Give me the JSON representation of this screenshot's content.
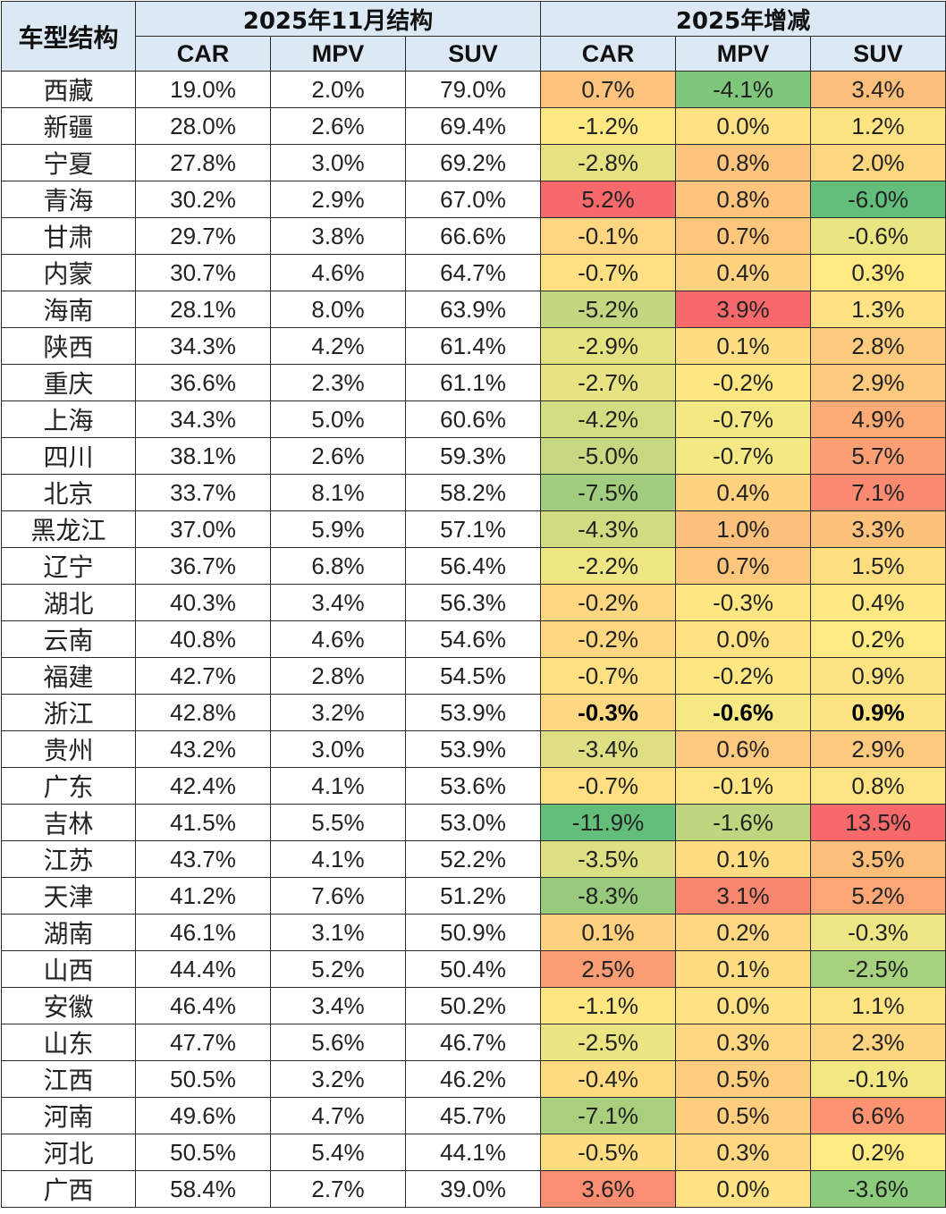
{
  "chart_data": {
    "type": "table",
    "corner_label": "车型结构",
    "groups": [
      "2025年11月结构",
      "2025年增减"
    ],
    "columns": [
      "CAR",
      "MPV",
      "SUV"
    ],
    "rows": [
      {
        "province": "西藏",
        "structure": [
          "19.0%",
          "2.0%",
          "79.0%"
        ],
        "change": [
          "0.7%",
          "-4.1%",
          "3.4%"
        ],
        "change_colors": [
          "#fdc37d",
          "#7dc67a",
          "#fcbf7b"
        ]
      },
      {
        "province": "新疆",
        "structure": [
          "28.0%",
          "2.6%",
          "69.4%"
        ],
        "change": [
          "-1.2%",
          "0.0%",
          "1.2%"
        ],
        "change_colors": [
          "#fde883",
          "#fee183",
          "#fee383"
        ]
      },
      {
        "province": "宁夏",
        "structure": [
          "27.8%",
          "3.0%",
          "69.2%"
        ],
        "change": [
          "-2.8%",
          "0.8%",
          "2.0%"
        ],
        "change_colors": [
          "#e6e282",
          "#fdc47d",
          "#fdd780"
        ]
      },
      {
        "province": "青海",
        "structure": [
          "30.2%",
          "2.9%",
          "67.0%"
        ],
        "change": [
          "5.2%",
          "0.8%",
          "-6.0%"
        ],
        "change_colors": [
          "#f8696b",
          "#fdc47d",
          "#63be7b"
        ]
      },
      {
        "province": "甘肃",
        "structure": [
          "29.7%",
          "3.8%",
          "66.6%"
        ],
        "change": [
          "-0.1%",
          "0.7%",
          "-0.6%"
        ],
        "change_colors": [
          "#fed580",
          "#fdc67d",
          "#e9e583"
        ]
      },
      {
        "province": "内蒙",
        "structure": [
          "30.7%",
          "4.6%",
          "64.7%"
        ],
        "change": [
          "-0.7%",
          "0.4%",
          "0.3%"
        ],
        "change_colors": [
          "#fedf82",
          "#fed27f",
          "#fee983"
        ]
      },
      {
        "province": "海南",
        "structure": [
          "28.1%",
          "8.0%",
          "63.9%"
        ],
        "change": [
          "-5.2%",
          "3.9%",
          "1.3%"
        ],
        "change_colors": [
          "#c3d780",
          "#f8696b",
          "#fee283"
        ]
      },
      {
        "province": "陕西",
        "structure": [
          "34.3%",
          "4.2%",
          "61.4%"
        ],
        "change": [
          "-2.9%",
          "0.1%",
          "2.8%"
        ],
        "change_colors": [
          "#e5e282",
          "#fedc81",
          "#fdcb7e"
        ]
      },
      {
        "province": "重庆",
        "structure": [
          "36.6%",
          "2.3%",
          "61.1%"
        ],
        "change": [
          "-2.7%",
          "-0.2%",
          "2.9%"
        ],
        "change_colors": [
          "#e7e382",
          "#fee683",
          "#fdca7e"
        ]
      },
      {
        "province": "上海",
        "structure": [
          "34.3%",
          "5.0%",
          "60.6%"
        ],
        "change": [
          "-4.2%",
          "-0.7%",
          "4.9%"
        ],
        "change_colors": [
          "#d2dc81",
          "#f4e884",
          "#fcab76"
        ]
      },
      {
        "province": "四川",
        "structure": [
          "38.1%",
          "2.6%",
          "59.3%"
        ],
        "change": [
          "-5.0%",
          "-0.7%",
          "5.7%"
        ],
        "change_colors": [
          "#c6d880",
          "#f4e884",
          "#fc9f74"
        ]
      },
      {
        "province": "北京",
        "structure": [
          "33.7%",
          "8.1%",
          "58.2%"
        ],
        "change": [
          "-7.5%",
          "0.4%",
          "7.1%"
        ],
        "change_colors": [
          "#a2cd7e",
          "#fed27f",
          "#fb8a71"
        ]
      },
      {
        "province": "黑龙江",
        "structure": [
          "37.0%",
          "5.9%",
          "57.1%"
        ],
        "change": [
          "-4.3%",
          "1.0%",
          "3.3%"
        ],
        "change_colors": [
          "#d1dc81",
          "#fdc07c",
          "#fcc27c"
        ]
      },
      {
        "province": "辽宁",
        "structure": [
          "36.7%",
          "6.8%",
          "56.4%"
        ],
        "change": [
          "-2.2%",
          "0.7%",
          "1.5%"
        ],
        "change_colors": [
          "#eee583",
          "#fdc67d",
          "#fddf82"
        ]
      },
      {
        "province": "湖北",
        "structure": [
          "40.3%",
          "3.4%",
          "56.3%"
        ],
        "change": [
          "-0.2%",
          "-0.3%",
          "0.4%"
        ],
        "change_colors": [
          "#fed780",
          "#fee683",
          "#fee883"
        ]
      },
      {
        "province": "云南",
        "structure": [
          "40.8%",
          "4.6%",
          "54.6%"
        ],
        "change": [
          "-0.2%",
          "0.0%",
          "0.2%"
        ],
        "change_colors": [
          "#fed780",
          "#fee183",
          "#feea83"
        ]
      },
      {
        "province": "福建",
        "structure": [
          "42.7%",
          "2.8%",
          "54.5%"
        ],
        "change": [
          "-0.7%",
          "-0.2%",
          "0.9%"
        ],
        "change_colors": [
          "#fedf82",
          "#fee683",
          "#fee383"
        ]
      },
      {
        "province": "浙江",
        "structure": [
          "42.8%",
          "3.2%",
          "53.9%"
        ],
        "change": [
          "-0.3%",
          "-0.6%",
          "0.9%"
        ],
        "change_colors": [
          "#fed880",
          "#f6e884",
          "#fee383"
        ],
        "bold": true
      },
      {
        "province": "贵州",
        "structure": [
          "43.2%",
          "3.0%",
          "53.9%"
        ],
        "change": [
          "-3.4%",
          "0.6%",
          "2.9%"
        ],
        "change_colors": [
          "#dddf82",
          "#fdc97e",
          "#fdca7e"
        ]
      },
      {
        "province": "广东",
        "structure": [
          "42.4%",
          "4.1%",
          "53.6%"
        ],
        "change": [
          "-0.7%",
          "-0.1%",
          "0.8%"
        ],
        "change_colors": [
          "#fedf82",
          "#fee483",
          "#fee483"
        ]
      },
      {
        "province": "吉林",
        "structure": [
          "41.5%",
          "5.5%",
          "53.0%"
        ],
        "change": [
          "-11.9%",
          "-1.6%",
          "13.5%"
        ],
        "change_colors": [
          "#63be7b",
          "#bed67f",
          "#f8696b"
        ]
      },
      {
        "province": "江苏",
        "structure": [
          "43.7%",
          "4.1%",
          "52.2%"
        ],
        "change": [
          "-3.5%",
          "0.1%",
          "3.5%"
        ],
        "change_colors": [
          "#dce082",
          "#fedc81",
          "#fcbf7b"
        ]
      },
      {
        "province": "天津",
        "structure": [
          "41.2%",
          "7.6%",
          "51.2%"
        ],
        "change": [
          "-8.3%",
          "3.1%",
          "5.2%"
        ],
        "change_colors": [
          "#97ca7d",
          "#f98770",
          "#fca575"
        ]
      },
      {
        "province": "湖南",
        "structure": [
          "46.1%",
          "3.1%",
          "50.9%"
        ],
        "change": [
          "0.1%",
          "0.2%",
          "-0.3%"
        ],
        "change_colors": [
          "#fdd17f",
          "#fed780",
          "#eee684"
        ]
      },
      {
        "province": "山西",
        "structure": [
          "44.4%",
          "5.2%",
          "50.4%"
        ],
        "change": [
          "2.5%",
          "0.1%",
          "-2.5%"
        ],
        "change_colors": [
          "#fb9d74",
          "#fedc81",
          "#a6d17e"
        ]
      },
      {
        "province": "安徽",
        "structure": [
          "46.4%",
          "3.4%",
          "50.2%"
        ],
        "change": [
          "-1.1%",
          "0.0%",
          "1.1%"
        ],
        "change_colors": [
          "#fee683",
          "#fee183",
          "#fee383"
        ]
      },
      {
        "province": "山东",
        "structure": [
          "47.7%",
          "5.6%",
          "46.7%"
        ],
        "change": [
          "-2.5%",
          "0.3%",
          "2.3%"
        ],
        "change_colors": [
          "#eae482",
          "#fed780",
          "#fdd47f"
        ]
      },
      {
        "province": "江西",
        "structure": [
          "50.5%",
          "3.2%",
          "46.2%"
        ],
        "change": [
          "-0.4%",
          "0.5%",
          "-0.1%"
        ],
        "change_colors": [
          "#feda81",
          "#fecd7e",
          "#f3e784"
        ]
      },
      {
        "province": "河南",
        "structure": [
          "49.6%",
          "4.7%",
          "45.7%"
        ],
        "change": [
          "-7.1%",
          "0.5%",
          "6.6%"
        ],
        "change_colors": [
          "#a8ce7e",
          "#fecd7e",
          "#fc9472"
        ]
      },
      {
        "province": "河北",
        "structure": [
          "50.5%",
          "5.4%",
          "44.1%"
        ],
        "change": [
          "-0.5%",
          "0.3%",
          "0.2%"
        ],
        "change_colors": [
          "#fedc81",
          "#fed780",
          "#feea83"
        ]
      },
      {
        "province": "广西",
        "structure": [
          "58.4%",
          "2.7%",
          "39.0%"
        ],
        "change": [
          "3.6%",
          "0.0%",
          "-3.6%"
        ],
        "change_colors": [
          "#fa8d72",
          "#fee183",
          "#8ccb7d"
        ]
      }
    ]
  }
}
